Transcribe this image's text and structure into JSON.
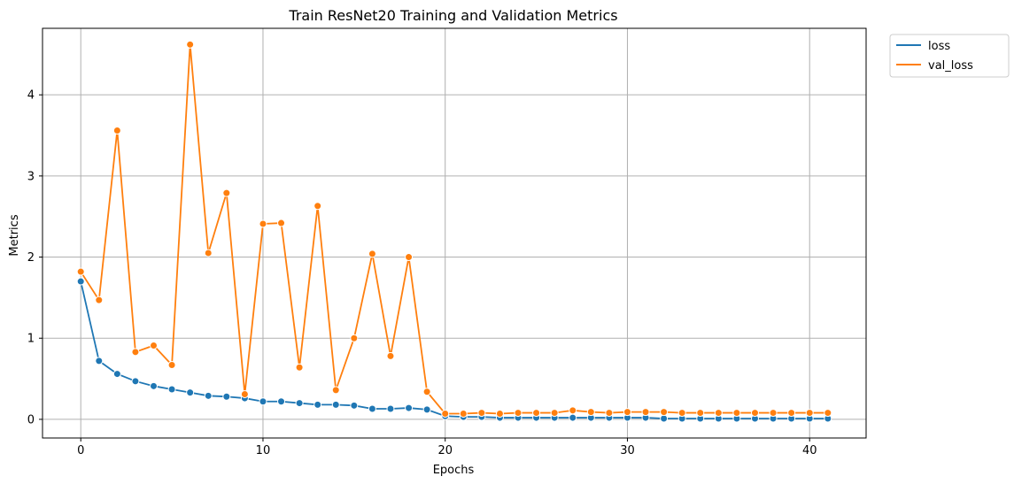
{
  "chart_data": {
    "type": "line",
    "title": "Train ResNet20 Training and Validation Metrics",
    "xlabel": "Epochs",
    "ylabel": "Metrics",
    "xlim": [
      -2.1,
      43.1
    ],
    "ylim": [
      -0.23,
      4.82
    ],
    "xticks": [
      0,
      10,
      20,
      30,
      40
    ],
    "yticks": [
      0,
      1,
      2,
      3,
      4
    ],
    "grid": true,
    "legend_position": "outside-top-right",
    "x": [
      0,
      1,
      2,
      3,
      4,
      5,
      6,
      7,
      8,
      9,
      10,
      11,
      12,
      13,
      14,
      15,
      16,
      17,
      18,
      19,
      20,
      21,
      22,
      23,
      24,
      25,
      26,
      27,
      28,
      29,
      30,
      31,
      32,
      33,
      34,
      35,
      36,
      37,
      38,
      39,
      40,
      41
    ],
    "series": [
      {
        "name": "loss",
        "color": "#1f77b4",
        "values": [
          1.7,
          0.72,
          0.56,
          0.47,
          0.41,
          0.37,
          0.33,
          0.29,
          0.28,
          0.26,
          0.22,
          0.22,
          0.2,
          0.18,
          0.18,
          0.17,
          0.13,
          0.13,
          0.14,
          0.12,
          0.04,
          0.03,
          0.03,
          0.02,
          0.02,
          0.02,
          0.02,
          0.02,
          0.02,
          0.02,
          0.02,
          0.02,
          0.01,
          0.01,
          0.01,
          0.01,
          0.01,
          0.01,
          0.01,
          0.01,
          0.01,
          0.01
        ]
      },
      {
        "name": "val_loss",
        "color": "#ff7f0e",
        "values": [
          1.82,
          1.47,
          3.56,
          0.83,
          0.91,
          0.67,
          4.62,
          2.05,
          2.79,
          0.31,
          2.41,
          2.42,
          0.64,
          2.63,
          0.36,
          1.0,
          2.04,
          0.78,
          2.0,
          0.34,
          0.07,
          0.07,
          0.08,
          0.07,
          0.08,
          0.08,
          0.08,
          0.11,
          0.09,
          0.08,
          0.09,
          0.09,
          0.09,
          0.08,
          0.08,
          0.08,
          0.08,
          0.08,
          0.08,
          0.08,
          0.08,
          0.08
        ]
      }
    ]
  }
}
